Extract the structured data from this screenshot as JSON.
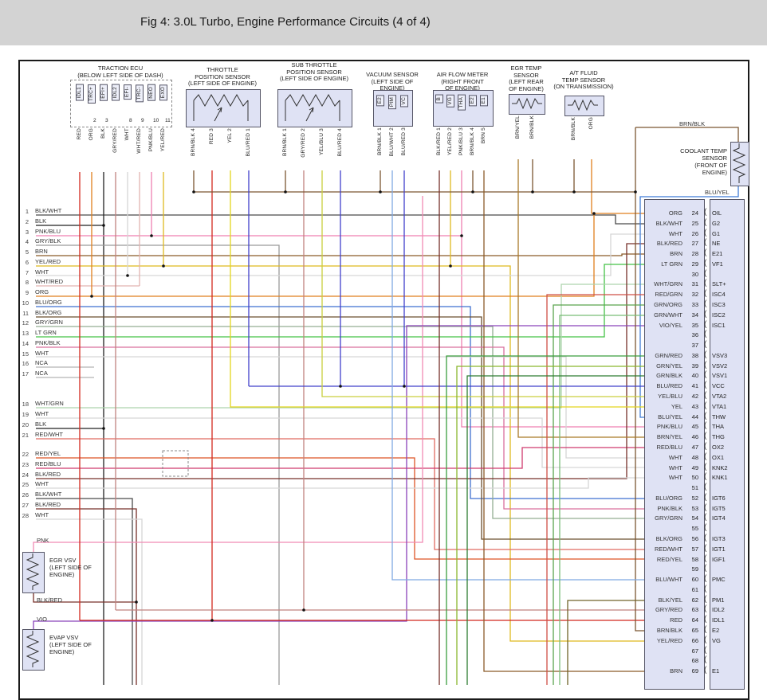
{
  "title": "Fig 4: 3.0L Turbo, Engine Performance Circuits (4 of 4)",
  "colors": {
    "titlebar_bg": "#d3d3d3",
    "panel": "#dfe2f4",
    "RED": "#d2281e",
    "ORG": "#e07f1e",
    "BLK": "#222222",
    "GRY/RED": "#c1827f",
    "WHT": "#d6d6d6",
    "WHT/RED": "#e2b4b0",
    "PNK/BLU": "#ef7fb0",
    "YEL/RED": "#dfb91f",
    "BLK/WHT": "#4a4a4a",
    "GRY/BLK": "#9a9a9a",
    "BRN": "#8a5a28",
    "BLU/ORG": "#3f6fd0",
    "BLK/ORG": "#6a4f2f",
    "GRY/GRN": "#93ad92",
    "LT GRN": "#44c246",
    "PNK/BLK": "#d9709e",
    "NCA": "#b5b5b5",
    "WHT/GRN": "#aed4ad",
    "RED/WHT": "#e06a62",
    "RED/YEL": "#de5426",
    "RED/BLU": "#cf3a6e",
    "BLK/RED": "#77302a",
    "BLU/RED": "#4140cb",
    "YEL": "#e3d51d",
    "YEL/BLU": "#c9cf3e",
    "BRN/BLK": "#7b5631",
    "BRN/YEL": "#a97a28",
    "BLU/YEL": "#3f7bd6",
    "BLU/WHT": "#7fa9e2",
    "BLK/YEL": "#70652a",
    "RED/GRN": "#cf4f46",
    "GRN/ORG": "#5aa34e",
    "GRN/WHT": "#79bd78",
    "VIO/YEL": "#a44fc0",
    "GRN/RED": "#3a9e3e",
    "GRN/YEL": "#8ab62e",
    "GRN/BLK": "#2d7c31",
    "VIO": "#8a43bb",
    "PNK": "#f08ab4"
  },
  "top_components": [
    {
      "id": "traction-ecu",
      "title": [
        "TRACTION ECU",
        "(BELOW LEFT SIDE OF DASH)"
      ],
      "pins": [
        "IDL1",
        "TRC+",
        "EFI+",
        "IDL2",
        "EFI-",
        "TRC-",
        "NEO",
        "EXO"
      ],
      "pin_numbers": [
        "",
        "2",
        "3",
        "",
        "8",
        "9",
        "10",
        "11"
      ],
      "wires": [
        "RED",
        "ORG",
        "BLK",
        "GRY/RED",
        "WHT",
        "WHT/RED",
        "PNK/BLU",
        "YEL/RED"
      ],
      "wire_numbers": [
        "",
        "",
        "",
        "",
        "",
        "",
        "",
        ""
      ]
    },
    {
      "id": "tps",
      "title": [
        "THROTTLE",
        "POSITION SENSOR",
        "(LEFT SIDE OF ENGINE)"
      ],
      "wires": [
        "BRN/BLK",
        "RED",
        "YEL",
        "BLU/RED"
      ],
      "wire_numbers": [
        "4",
        "3",
        "2",
        "1"
      ]
    },
    {
      "id": "sub-tps",
      "title": [
        "SUB THROTTLE",
        "POSITION SENSOR",
        "(LEFT SIDE OF ENGINE)"
      ],
      "wires": [
        "BRN/BLK",
        "GRY/RED",
        "YEL/BLU",
        "BLU/RED"
      ],
      "wire_numbers": [
        "1",
        "2",
        "3",
        "4"
      ]
    },
    {
      "id": "vacuum-sensor",
      "title": [
        "VACUUM SENSOR",
        "(LEFT SIDE OF",
        "ENGINE)"
      ],
      "pins": [
        "E2",
        "PIM",
        "VC"
      ],
      "wires": [
        "BRN/BLK",
        "BLU/WHT",
        "BLU/RED"
      ],
      "wire_numbers": [
        "1",
        "2",
        "3"
      ]
    },
    {
      "id": "air-flow-meter",
      "title": [
        "AIR FLOW METER",
        "(RIGHT FRONT",
        "OF ENGINE)"
      ],
      "pins": [
        "B",
        "VG",
        "THA",
        "E2",
        "E1"
      ],
      "wires": [
        "BLK/RED",
        "YEL/RED",
        "PNK/BLU",
        "BRN/BLK",
        "BRN"
      ],
      "wire_numbers": [
        "1",
        "2",
        "3",
        "4",
        "5"
      ]
    },
    {
      "id": "egr-temp-sensor",
      "title": [
        "EGR TEMP",
        "SENSOR",
        "(LEFT REAR",
        "OF ENGINE)"
      ],
      "wires": [
        "BRN/YEL",
        "BRN/BLK"
      ],
      "wire_numbers": [
        "",
        ""
      ]
    },
    {
      "id": "at-fluid-temp-sensor",
      "title": [
        "A/T FLUID",
        "TEMP SENSOR",
        "(ON TRANSMISSION)"
      ],
      "wires": [
        "BRN/BLK",
        "ORG"
      ],
      "wire_numbers": [
        "",
        ""
      ]
    }
  ],
  "coolant_sensor": {
    "title": [
      "COOLANT TEMP",
      "SENSOR",
      "(FRONT OF",
      "ENGINE)"
    ],
    "top_wire": "BRN/BLK",
    "bottom_wire": "BLU/YEL"
  },
  "bottom_components": [
    {
      "id": "egr-vsv",
      "title": [
        "EGR VSV",
        "(LEFT SIDE OF",
        "ENGINE)"
      ]
    },
    {
      "id": "evap-vsv",
      "title": [
        "EVAP VSV",
        "(LEFT SIDE OF",
        "ENGINE)"
      ]
    }
  ],
  "left_rows": [
    [
      1,
      "BLK/WHT"
    ],
    [
      2,
      "BLK"
    ],
    [
      3,
      "PNK/BLU"
    ],
    [
      4,
      "GRY/BLK"
    ],
    [
      5,
      "BRN"
    ],
    [
      6,
      "YEL/RED"
    ],
    [
      7,
      "WHT"
    ],
    [
      8,
      "WHT/RED"
    ],
    [
      9,
      "ORG"
    ],
    [
      10,
      "BLU/ORG"
    ],
    [
      11,
      "BLK/ORG"
    ],
    [
      12,
      "GRY/GRN"
    ],
    [
      13,
      "LT GRN"
    ],
    [
      14,
      "PNK/BLK"
    ],
    [
      15,
      "WHT"
    ],
    [
      16,
      "NCA"
    ],
    [
      17,
      "NCA"
    ],
    [
      18,
      "WHT/GRN"
    ],
    [
      19,
      "WHT"
    ],
    [
      20,
      "BLK"
    ],
    [
      21,
      "RED/WHT"
    ],
    [
      22,
      "RED/YEL"
    ],
    [
      23,
      "RED/BLU"
    ],
    [
      24,
      "BLK/RED"
    ],
    [
      25,
      "WHT"
    ],
    [
      26,
      "BLK/WHT"
    ],
    [
      27,
      "BLK/RED"
    ],
    [
      28,
      "WHT"
    ]
  ],
  "left_extra": [
    "PNK",
    "BLK/RED",
    "VIO"
  ],
  "ecm": {
    "bracket": "(",
    "pins": [
      [
        24,
        "ORG",
        "OIL"
      ],
      [
        25,
        "BLK/WHT",
        "G2"
      ],
      [
        26,
        "WHT",
        "G1"
      ],
      [
        27,
        "BLK/RED",
        "NE"
      ],
      [
        28,
        "BRN",
        "E21"
      ],
      [
        29,
        "LT GRN",
        "VF1"
      ],
      [
        30,
        "",
        ""
      ],
      [
        31,
        "WHT/GRN",
        "SLT+"
      ],
      [
        32,
        "RED/GRN",
        "ISC4"
      ],
      [
        33,
        "GRN/ORG",
        "ISC3"
      ],
      [
        34,
        "GRN/WHT",
        "ISC2"
      ],
      [
        35,
        "VIO/YEL",
        "ISC1"
      ],
      [
        36,
        "",
        ""
      ],
      [
        37,
        "",
        ""
      ],
      [
        38,
        "GRN/RED",
        "VSV3"
      ],
      [
        39,
        "GRN/YEL",
        "VSV2"
      ],
      [
        40,
        "GRN/BLK",
        "VSV1"
      ],
      [
        41,
        "BLU/RED",
        "VCC"
      ],
      [
        42,
        "YEL/BLU",
        "VTA2"
      ],
      [
        43,
        "YEL",
        "VTA1"
      ],
      [
        44,
        "BLU/YEL",
        "THW"
      ],
      [
        45,
        "PNK/BLU",
        "THA"
      ],
      [
        46,
        "BRN/YEL",
        "THG"
      ],
      [
        47,
        "RED/BLU",
        "OX2"
      ],
      [
        48,
        "WHT",
        "OX1"
      ],
      [
        49,
        "WHT",
        "KNK2"
      ],
      [
        50,
        "WHT",
        "KNK1"
      ],
      [
        51,
        "",
        ""
      ],
      [
        52,
        "BLU/ORG",
        "IGT6"
      ],
      [
        53,
        "PNK/BLK",
        "IGT5"
      ],
      [
        54,
        "GRY/GRN",
        "IGT4"
      ],
      [
        55,
        "",
        ""
      ],
      [
        56,
        "BLK/ORG",
        "IGT3"
      ],
      [
        57,
        "RED/WHT",
        "IGT1"
      ],
      [
        58,
        "RED/YEL",
        "IGF1"
      ],
      [
        59,
        "",
        ""
      ],
      [
        60,
        "BLU/WHT",
        "PMC"
      ],
      [
        61,
        "",
        ""
      ],
      [
        62,
        "BLK/YEL",
        "PM1"
      ],
      [
        63,
        "GRY/RED",
        "IDL2"
      ],
      [
        64,
        "RED",
        "IDL1"
      ],
      [
        65,
        "BRN/BLK",
        "E2"
      ],
      [
        66,
        "YEL/RED",
        "VG"
      ],
      [
        67,
        "",
        ""
      ],
      [
        68,
        "",
        ""
      ],
      [
        69,
        "BRN",
        "E1"
      ]
    ]
  }
}
